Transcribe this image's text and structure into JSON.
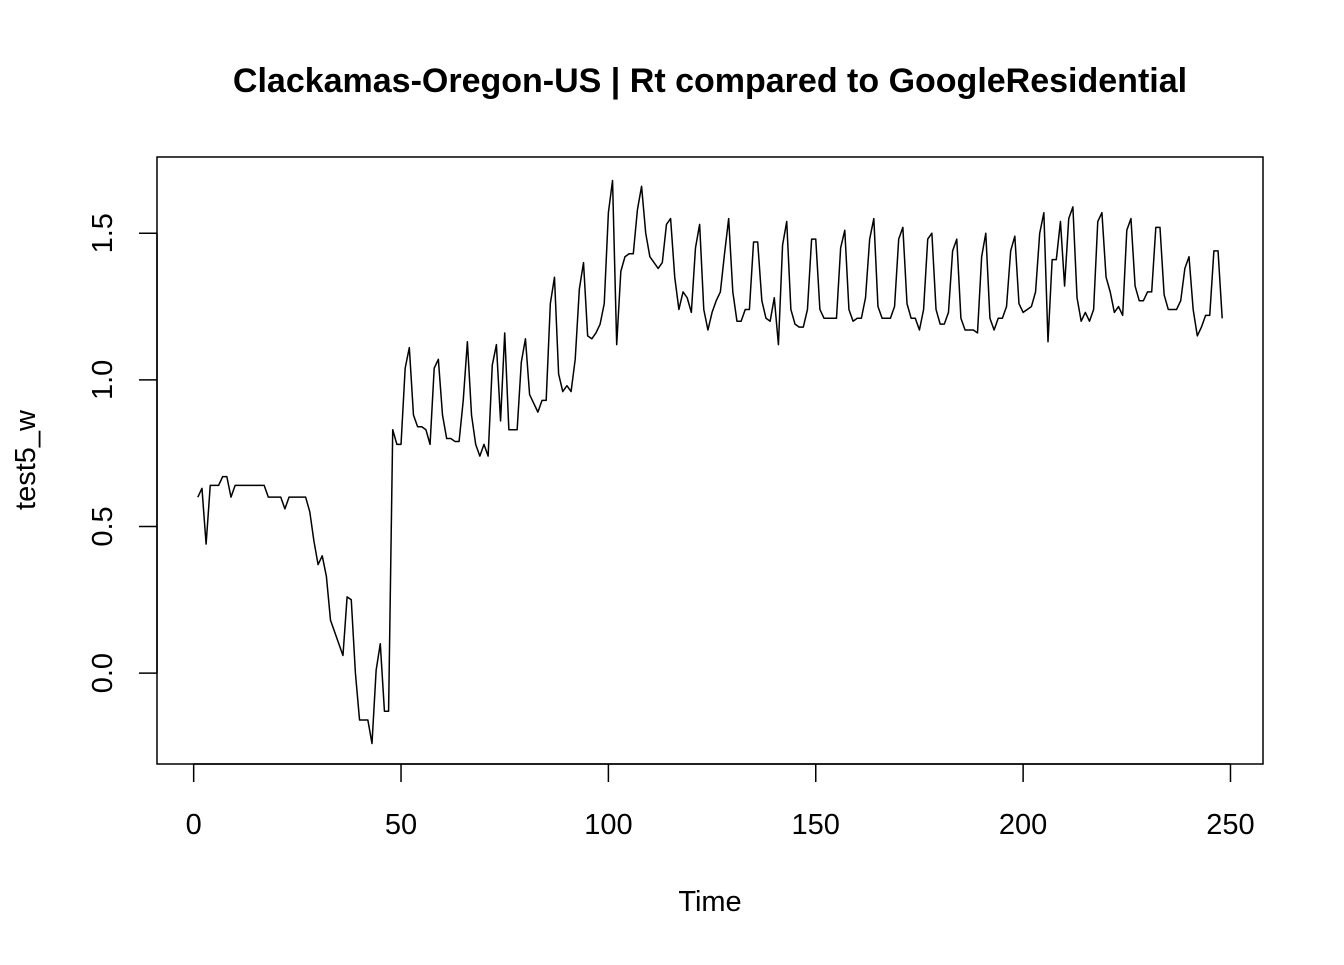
{
  "chart_data": {
    "type": "line",
    "title": "Clackamas-Oregon-US | Rt compared to GoogleResidential",
    "xlabel": "Time",
    "ylabel": "test5_w",
    "xlim": [
      -8.84,
      257.84
    ],
    "ylim": [
      -0.31,
      1.76
    ],
    "grid": false,
    "x_ticks": [
      0,
      50,
      100,
      150,
      200,
      250
    ],
    "y_ticks": [
      0.0,
      0.5,
      1.0,
      1.5
    ],
    "x_tick_labels": [
      "0",
      "50",
      "100",
      "150",
      "200",
      "250"
    ],
    "y_tick_labels": [
      "0.0",
      "0.5",
      "1.0",
      "1.5"
    ],
    "line_color": "#000000",
    "x_start": 1,
    "y": [
      0.6,
      0.63,
      0.44,
      0.64,
      0.64,
      0.64,
      0.67,
      0.67,
      0.6,
      0.64,
      0.64,
      0.64,
      0.64,
      0.64,
      0.64,
      0.64,
      0.64,
      0.6,
      0.6,
      0.6,
      0.6,
      0.56,
      0.6,
      0.6,
      0.6,
      0.6,
      0.6,
      0.55,
      0.45,
      0.37,
      0.4,
      0.33,
      0.18,
      0.14,
      0.1,
      0.06,
      0.26,
      0.25,
      0.0,
      -0.16,
      -0.16,
      -0.16,
      -0.24,
      0.01,
      0.1,
      -0.13,
      -0.13,
      0.83,
      0.78,
      0.78,
      1.04,
      1.11,
      0.88,
      0.84,
      0.84,
      0.83,
      0.78,
      1.04,
      1.07,
      0.88,
      0.8,
      0.8,
      0.79,
      0.79,
      0.93,
      1.13,
      0.88,
      0.78,
      0.74,
      0.78,
      0.74,
      1.05,
      1.12,
      0.86,
      1.16,
      0.83,
      0.83,
      0.83,
      1.06,
      1.14,
      0.95,
      0.92,
      0.89,
      0.93,
      0.93,
      1.26,
      1.35,
      1.02,
      0.96,
      0.98,
      0.96,
      1.07,
      1.31,
      1.4,
      1.15,
      1.14,
      1.16,
      1.19,
      1.26,
      1.57,
      1.68,
      1.12,
      1.37,
      1.42,
      1.43,
      1.43,
      1.58,
      1.66,
      1.5,
      1.42,
      1.4,
      1.38,
      1.4,
      1.53,
      1.55,
      1.35,
      1.24,
      1.3,
      1.28,
      1.23,
      1.45,
      1.53,
      1.24,
      1.17,
      1.23,
      1.27,
      1.3,
      1.43,
      1.55,
      1.3,
      1.2,
      1.2,
      1.24,
      1.24,
      1.47,
      1.47,
      1.27,
      1.21,
      1.2,
      1.28,
      1.12,
      1.46,
      1.54,
      1.24,
      1.19,
      1.18,
      1.18,
      1.24,
      1.48,
      1.48,
      1.24,
      1.21,
      1.21,
      1.21,
      1.21,
      1.45,
      1.51,
      1.24,
      1.2,
      1.21,
      1.21,
      1.28,
      1.48,
      1.55,
      1.25,
      1.21,
      1.21,
      1.21,
      1.25,
      1.48,
      1.52,
      1.26,
      1.21,
      1.21,
      1.17,
      1.24,
      1.48,
      1.5,
      1.24,
      1.19,
      1.19,
      1.23,
      1.44,
      1.48,
      1.21,
      1.17,
      1.17,
      1.17,
      1.16,
      1.42,
      1.5,
      1.21,
      1.17,
      1.21,
      1.21,
      1.25,
      1.44,
      1.49,
      1.26,
      1.23,
      1.24,
      1.25,
      1.3,
      1.5,
      1.57,
      1.13,
      1.41,
      1.41,
      1.54,
      1.32,
      1.55,
      1.59,
      1.28,
      1.2,
      1.23,
      1.2,
      1.24,
      1.54,
      1.57,
      1.35,
      1.3,
      1.23,
      1.25,
      1.22,
      1.51,
      1.55,
      1.32,
      1.27,
      1.27,
      1.3,
      1.3,
      1.52,
      1.52,
      1.29,
      1.24,
      1.24,
      1.24,
      1.27,
      1.38,
      1.42,
      1.24,
      1.15,
      1.18,
      1.22,
      1.22,
      1.44,
      1.44,
      1.21
    ]
  }
}
